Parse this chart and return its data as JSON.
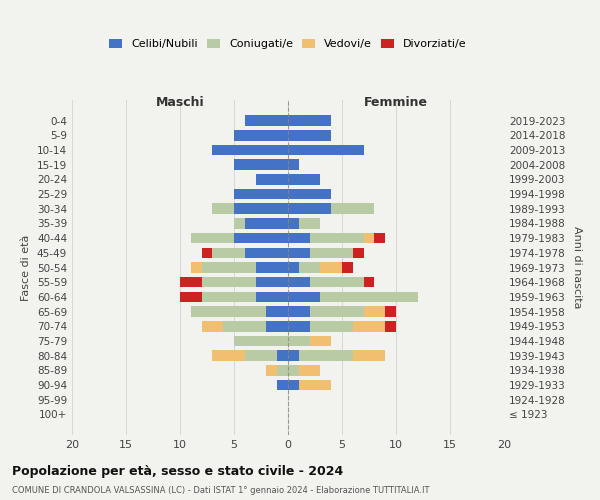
{
  "age_groups": [
    "100+",
    "95-99",
    "90-94",
    "85-89",
    "80-84",
    "75-79",
    "70-74",
    "65-69",
    "60-64",
    "55-59",
    "50-54",
    "45-49",
    "40-44",
    "35-39",
    "30-34",
    "25-29",
    "20-24",
    "15-19",
    "10-14",
    "5-9",
    "0-4"
  ],
  "birth_years": [
    "≤ 1923",
    "1924-1928",
    "1929-1933",
    "1934-1938",
    "1939-1943",
    "1944-1948",
    "1949-1953",
    "1954-1958",
    "1959-1963",
    "1964-1968",
    "1969-1973",
    "1974-1978",
    "1979-1983",
    "1984-1988",
    "1989-1993",
    "1994-1998",
    "1999-2003",
    "2004-2008",
    "2009-2013",
    "2014-2018",
    "2019-2023"
  ],
  "maschi_celibi": [
    0,
    0,
    1,
    0,
    1,
    0,
    2,
    2,
    3,
    3,
    3,
    4,
    5,
    4,
    5,
    5,
    3,
    5,
    7,
    5,
    4
  ],
  "maschi_coniugati": [
    0,
    0,
    0,
    1,
    3,
    5,
    4,
    7,
    5,
    5,
    5,
    3,
    4,
    1,
    2,
    0,
    0,
    0,
    0,
    0,
    0
  ],
  "maschi_vedovi": [
    0,
    0,
    0,
    1,
    3,
    0,
    2,
    0,
    0,
    0,
    1,
    0,
    0,
    0,
    0,
    0,
    0,
    0,
    0,
    0,
    0
  ],
  "maschi_divorziati": [
    0,
    0,
    0,
    0,
    0,
    0,
    0,
    0,
    2,
    2,
    0,
    1,
    0,
    0,
    0,
    0,
    0,
    0,
    0,
    0,
    0
  ],
  "femmine_nubili": [
    0,
    0,
    1,
    0,
    1,
    0,
    2,
    2,
    3,
    2,
    1,
    2,
    2,
    1,
    4,
    4,
    3,
    1,
    7,
    4,
    4
  ],
  "femmine_coniugate": [
    0,
    0,
    0,
    1,
    5,
    2,
    4,
    5,
    9,
    5,
    2,
    4,
    5,
    2,
    4,
    0,
    0,
    0,
    0,
    0,
    0
  ],
  "femmine_vedove": [
    0,
    0,
    3,
    2,
    3,
    2,
    3,
    2,
    0,
    0,
    2,
    0,
    1,
    0,
    0,
    0,
    0,
    0,
    0,
    0,
    0
  ],
  "femmine_divorziate": [
    0,
    0,
    0,
    0,
    0,
    0,
    1,
    1,
    0,
    1,
    1,
    1,
    1,
    0,
    0,
    0,
    0,
    0,
    0,
    0,
    0
  ],
  "col_celibi": "#4472c4",
  "col_coniugati": "#b8cba5",
  "col_vedovi": "#f0c070",
  "col_divorziati": "#cc2222",
  "xlim": 20,
  "bg_color": "#f2f2ee",
  "title": "Popolazione per età, sesso e stato civile - 2024",
  "subtitle": "COMUNE DI CRANDOLA VALSASSINA (LC) - Dati ISTAT 1° gennaio 2024 - Elaborazione TUTTITALIA.IT",
  "legend_labels": [
    "Celibi/Nubili",
    "Coniugati/e",
    "Vedovi/e",
    "Divorziati/e"
  ],
  "label_maschi": "Maschi",
  "label_femmine": "Femmine",
  "ylabel_left": "Fasce di età",
  "ylabel_right": "Anni di nascita"
}
